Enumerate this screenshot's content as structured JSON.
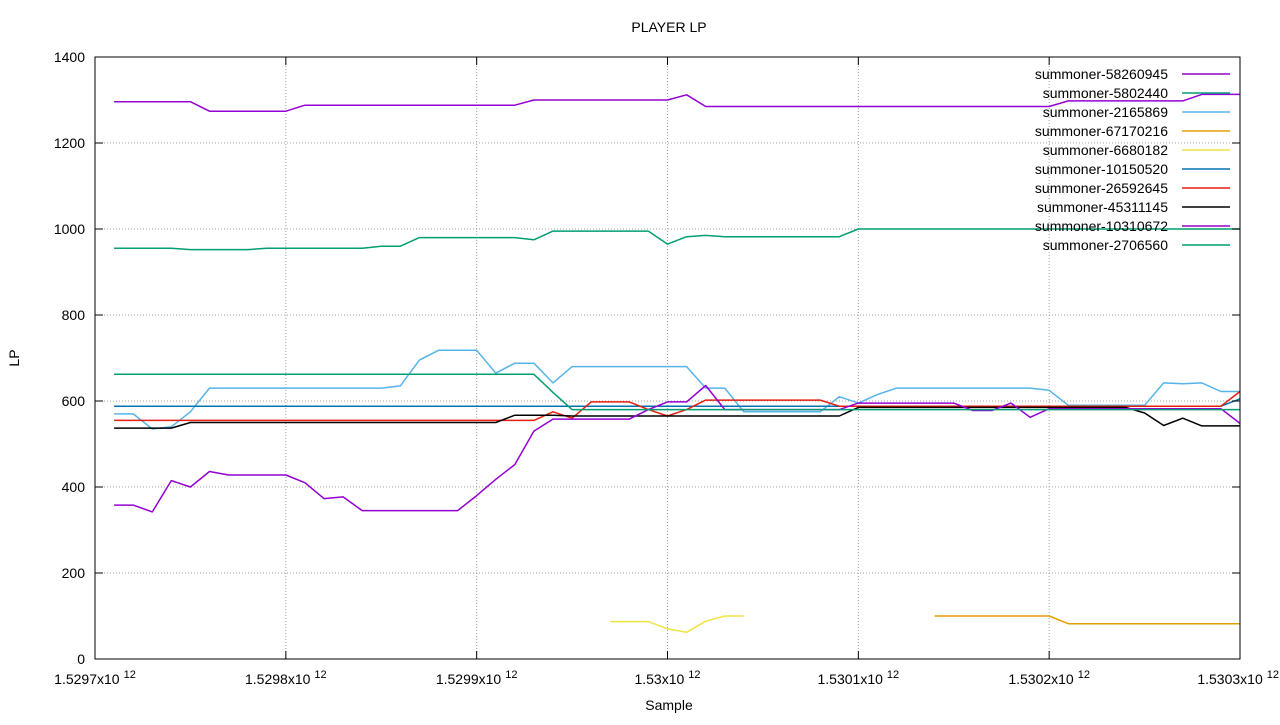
{
  "chart_data": {
    "type": "line",
    "title": "PLAYER LP",
    "xlabel": "Sample",
    "ylabel": "LP",
    "xlim": [
      1529700000000.0,
      1530300000000.0
    ],
    "ylim": [
      0,
      1400
    ],
    "grid": true,
    "legend_position": "top-right",
    "x_ticks": [
      {
        "value": 1529700000000.0,
        "base": "1.5297x10",
        "exp": "12"
      },
      {
        "value": 1529800000000.0,
        "base": "1.5298x10",
        "exp": "12"
      },
      {
        "value": 1529900000000.0,
        "base": "1.5299x10",
        "exp": "12"
      },
      {
        "value": 1530000000000.0,
        "base": "1.53x10",
        "exp": "12"
      },
      {
        "value": 1530100000000.0,
        "base": "1.5301x10",
        "exp": "12"
      },
      {
        "value": 1530200000000.0,
        "base": "1.5302x10",
        "exp": "12"
      },
      {
        "value": 1530300000000.0,
        "base": "1.5303x10",
        "exp": "12"
      }
    ],
    "y_ticks": [
      {
        "value": 0,
        "label": "0"
      },
      {
        "value": 200,
        "label": "200"
      },
      {
        "value": 400,
        "label": "400"
      },
      {
        "value": 600,
        "label": "600"
      },
      {
        "value": 800,
        "label": "800"
      },
      {
        "value": 1000,
        "label": "1000"
      },
      {
        "value": 1200,
        "label": "1200"
      },
      {
        "value": 1400,
        "label": "1400"
      }
    ],
    "series": [
      {
        "name": "summoner-58260945",
        "color": "#9400d3",
        "points": [
          [
            1529710000000.0,
            1296
          ],
          [
            1529750000000.0,
            1296
          ],
          [
            1529760000000.0,
            1274
          ],
          [
            1529800000000.0,
            1274
          ],
          [
            1529810000000.0,
            1288
          ],
          [
            1529920000000.0,
            1288
          ],
          [
            1529930000000.0,
            1300
          ],
          [
            1530000000000.0,
            1300
          ],
          [
            1530010000000.0,
            1312
          ],
          [
            1530020000000.0,
            1285
          ],
          [
            1530200000000.0,
            1285
          ],
          [
            1530210000000.0,
            1298
          ],
          [
            1530270000000.0,
            1298
          ],
          [
            1530280000000.0,
            1313
          ],
          [
            1530300000000.0,
            1313
          ]
        ]
      },
      {
        "name": "summoner-5802440",
        "color": "#009e73",
        "points": [
          [
            1529710000000.0,
            955
          ],
          [
            1529740000000.0,
            955
          ],
          [
            1529750000000.0,
            952
          ],
          [
            1529780000000.0,
            952
          ],
          [
            1529790000000.0,
            955
          ],
          [
            1529840000000.0,
            955
          ],
          [
            1529850000000.0,
            960
          ],
          [
            1529860000000.0,
            960
          ],
          [
            1529870000000.0,
            980
          ],
          [
            1529920000000.0,
            980
          ],
          [
            1529930000000.0,
            975
          ],
          [
            1529940000000.0,
            995
          ],
          [
            1529990000000.0,
            995
          ],
          [
            1530000000000.0,
            965
          ],
          [
            1530010000000.0,
            982
          ],
          [
            1530020000000.0,
            985
          ],
          [
            1530030000000.0,
            982
          ],
          [
            1530090000000.0,
            982
          ],
          [
            1530100000000.0,
            1000
          ],
          [
            1530300000000.0,
            1000
          ]
        ]
      },
      {
        "name": "summoner-2165869",
        "color": "#56b4e9",
        "points": [
          [
            1529710000000.0,
            570
          ],
          [
            1529720000000.0,
            570
          ],
          [
            1529730000000.0,
            535
          ],
          [
            1529740000000.0,
            540
          ],
          [
            1529750000000.0,
            575
          ],
          [
            1529760000000.0,
            630
          ],
          [
            1529850000000.0,
            630
          ],
          [
            1529860000000.0,
            635
          ],
          [
            1529870000000.0,
            695
          ],
          [
            1529880000000.0,
            718
          ],
          [
            1529900000000.0,
            718
          ],
          [
            1529910000000.0,
            665
          ],
          [
            1529920000000.0,
            688
          ],
          [
            1529930000000.0,
            688
          ],
          [
            1529940000000.0,
            642
          ],
          [
            1529950000000.0,
            680
          ],
          [
            1530010000000.0,
            680
          ],
          [
            1530020000000.0,
            630
          ],
          [
            1530030000000.0,
            630
          ],
          [
            1530040000000.0,
            575
          ],
          [
            1530080000000.0,
            575
          ],
          [
            1530090000000.0,
            610
          ],
          [
            1530100000000.0,
            595
          ],
          [
            1530110000000.0,
            615
          ],
          [
            1530120000000.0,
            630
          ],
          [
            1530190000000.0,
            630
          ],
          [
            1530200000000.0,
            625
          ],
          [
            1530210000000.0,
            590
          ],
          [
            1530250000000.0,
            590
          ],
          [
            1530260000000.0,
            642
          ],
          [
            1530270000000.0,
            640
          ],
          [
            1530280000000.0,
            642
          ],
          [
            1530290000000.0,
            622
          ],
          [
            1530300000000.0,
            622
          ]
        ]
      },
      {
        "name": "summoner-67170216",
        "color": "#e69f00",
        "points": [
          [
            1530140000000.0,
            100
          ],
          [
            1530200000000.0,
            100
          ],
          [
            1530210000000.0,
            82
          ],
          [
            1530300000000.0,
            82
          ]
        ]
      },
      {
        "name": "summoner-6680182",
        "color": "#f0e442",
        "points": [
          [
            1529970000000.0,
            87
          ],
          [
            1529990000000.0,
            87
          ],
          [
            1530000000000.0,
            70
          ],
          [
            1530010000000.0,
            62
          ],
          [
            1530020000000.0,
            88
          ],
          [
            1530030000000.0,
            100
          ],
          [
            1530040000000.0,
            100
          ]
        ]
      },
      {
        "name": "summoner-10150520",
        "color": "#0072b2",
        "points": [
          [
            1529710000000.0,
            588
          ],
          [
            1530290000000.0,
            588
          ],
          [
            1530300000000.0,
            605
          ]
        ]
      },
      {
        "name": "summoner-26592645",
        "color": "#e51e10",
        "points": [
          [
            1529710000000.0,
            555
          ],
          [
            1529930000000.0,
            555
          ],
          [
            1529940000000.0,
            575
          ],
          [
            1529950000000.0,
            560
          ],
          [
            1529960000000.0,
            598
          ],
          [
            1529980000000.0,
            598
          ],
          [
            1529990000000.0,
            580
          ],
          [
            1530000000000.0,
            565
          ],
          [
            1530010000000.0,
            580
          ],
          [
            1530020000000.0,
            602
          ],
          [
            1530080000000.0,
            602
          ],
          [
            1530090000000.0,
            588
          ],
          [
            1530290000000.0,
            588
          ],
          [
            1530300000000.0,
            622
          ]
        ]
      },
      {
        "name": "summoner-45311145",
        "color": "#000000",
        "points": [
          [
            1529710000000.0,
            537
          ],
          [
            1529740000000.0,
            537
          ],
          [
            1529750000000.0,
            550
          ],
          [
            1529910000000.0,
            550
          ],
          [
            1529920000000.0,
            567
          ],
          [
            1529940000000.0,
            567
          ],
          [
            1529950000000.0,
            565
          ],
          [
            1530090000000.0,
            565
          ],
          [
            1530100000000.0,
            585
          ],
          [
            1530240000000.0,
            585
          ],
          [
            1530250000000.0,
            572
          ],
          [
            1530260000000.0,
            543
          ],
          [
            1530270000000.0,
            560
          ],
          [
            1530280000000.0,
            542
          ],
          [
            1530300000000.0,
            542
          ]
        ]
      },
      {
        "name": "summoner-10310672",
        "color": "#9400d3",
        "points": [
          [
            1529710000000.0,
            358
          ],
          [
            1529720000000.0,
            358
          ],
          [
            1529730000000.0,
            342
          ],
          [
            1529740000000.0,
            415
          ],
          [
            1529750000000.0,
            400
          ],
          [
            1529760000000.0,
            436
          ],
          [
            1529770000000.0,
            428
          ],
          [
            1529800000000.0,
            428
          ],
          [
            1529810000000.0,
            410
          ],
          [
            1529820000000.0,
            373
          ],
          [
            1529830000000.0,
            377
          ],
          [
            1529840000000.0,
            345
          ],
          [
            1529890000000.0,
            345
          ],
          [
            1529900000000.0,
            380
          ],
          [
            1529910000000.0,
            418
          ],
          [
            1529920000000.0,
            452
          ],
          [
            1529930000000.0,
            530
          ],
          [
            1529940000000.0,
            558
          ],
          [
            1529980000000.0,
            558
          ],
          [
            1529990000000.0,
            580
          ],
          [
            1530000000000.0,
            598
          ],
          [
            1530010000000.0,
            598
          ],
          [
            1530020000000.0,
            636
          ],
          [
            1530030000000.0,
            580
          ],
          [
            1530090000000.0,
            580
          ],
          [
            1530100000000.0,
            595
          ],
          [
            1530150000000.0,
            595
          ],
          [
            1530160000000.0,
            578
          ],
          [
            1530170000000.0,
            578
          ],
          [
            1530180000000.0,
            595
          ],
          [
            1530190000000.0,
            562
          ],
          [
            1530200000000.0,
            582
          ],
          [
            1530290000000.0,
            582
          ],
          [
            1530300000000.0,
            548
          ]
        ]
      },
      {
        "name": "summoner-2706560",
        "color": "#009e73",
        "points": [
          [
            1529710000000.0,
            662
          ],
          [
            1529930000000.0,
            662
          ],
          [
            1529940000000.0,
            620
          ],
          [
            1529950000000.0,
            580
          ],
          [
            1530300000000.0,
            580
          ]
        ]
      }
    ]
  }
}
